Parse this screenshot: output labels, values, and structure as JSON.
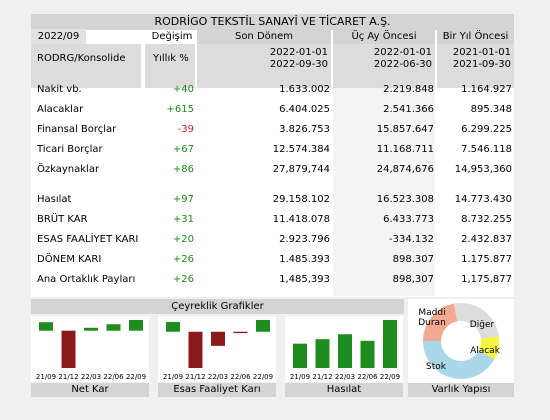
{
  "title": "RODRİGO TEKSTİL SANAYİ VE TİCARET A.Ş.",
  "columns": {
    "period": "2022/09",
    "change": "Değişim",
    "current": "Son Dönem",
    "q_ago": "Üç Ay Öncesi",
    "y_ago": "Bir Yıl Öncesi"
  },
  "sub": {
    "basis": "RODRG/Konsolide",
    "change_unit": "Yıllık %",
    "current_dates": [
      "2022-01-01",
      "2022-09-30"
    ],
    "q_ago_dates": [
      "2022-01-01",
      "2022-06-30"
    ],
    "y_ago_dates": [
      "2021-01-01",
      "2021-09-30"
    ]
  },
  "rows": [
    {
      "label": "Nakit vb.",
      "change": "+40",
      "current": "1.633.002",
      "q_ago": "2.219.848",
      "y_ago": "1.164.927"
    },
    {
      "label": "Alacaklar",
      "change": "+615",
      "current": "6.404.025",
      "q_ago": "2.541.366",
      "y_ago": "895.348"
    },
    {
      "label": "Finansal Borçlar",
      "change": "-39",
      "current": "3.826.753",
      "q_ago": "15.857.647",
      "y_ago": "6.299.225"
    },
    {
      "label": "Ticari Borçlar",
      "change": "+67",
      "current": "12.574.384",
      "q_ago": "11.168.711",
      "y_ago": "7.546.118"
    },
    {
      "label": "Özkaynaklar",
      "change": "+86",
      "current": "27,879,744",
      "q_ago": "24,874,676",
      "y_ago": "14,953,360"
    },
    {
      "label": "Hasılat",
      "change": "+97",
      "current": "29.158.102",
      "q_ago": "16.523.308",
      "y_ago": "14.773.430"
    },
    {
      "label": "BRÜT KAR",
      "change": "+31",
      "current": "11.418.078",
      "q_ago": "6.433.773",
      "y_ago": "8.732.255"
    },
    {
      "label": "ESAS FAALİYET KARI",
      "change": "+20",
      "current": "2.923.796",
      "q_ago": "-334.132",
      "y_ago": "2.432.837"
    },
    {
      "label": "DÖNEM KARI",
      "change": "+26",
      "current": "1.485.393",
      "q_ago": "898.307",
      "y_ago": "1.175.877"
    },
    {
      "label": "Ana Ortaklık Payları",
      "change": "+26",
      "current": "1,485,393",
      "q_ago": "898,307",
      "y_ago": "1,175,877"
    }
  ],
  "charts_header": "Çeyreklik Grafikler",
  "quarter_labels": [
    "21/09",
    "21/12",
    "22/03",
    "22/06",
    "22/09"
  ],
  "charts": [
    {
      "label": "Net Kar",
      "color": "#1e8c1e",
      "neg_color": "#8b1a1a",
      "values": [
        1.18,
        -5.2,
        0.4,
        0.9,
        1.49
      ]
    },
    {
      "label": "Esas Faaliyet Karı",
      "color": "#1e8c1e",
      "neg_color": "#8b1a1a",
      "values": [
        2.43,
        -9.0,
        -3.5,
        -0.33,
        2.92
      ]
    },
    {
      "label": "Hasılat",
      "color": "#1e8c1e",
      "neg_color": "#8b1a1a",
      "values": [
        14.77,
        17.5,
        20.5,
        16.52,
        29.16
      ]
    }
  ],
  "varlik": {
    "label": "Varlık Yapısı",
    "segments": [
      {
        "name": "Maddi Duran",
        "value": 22,
        "color": "#f2a98f"
      },
      {
        "name": "Diğer",
        "value": 26,
        "color": "#dcdcdc"
      },
      {
        "name": "Alacak",
        "value": 10,
        "color": "#f5f542"
      },
      {
        "name": "Stok",
        "value": 42,
        "color": "#a9d8e8"
      }
    ]
  }
}
